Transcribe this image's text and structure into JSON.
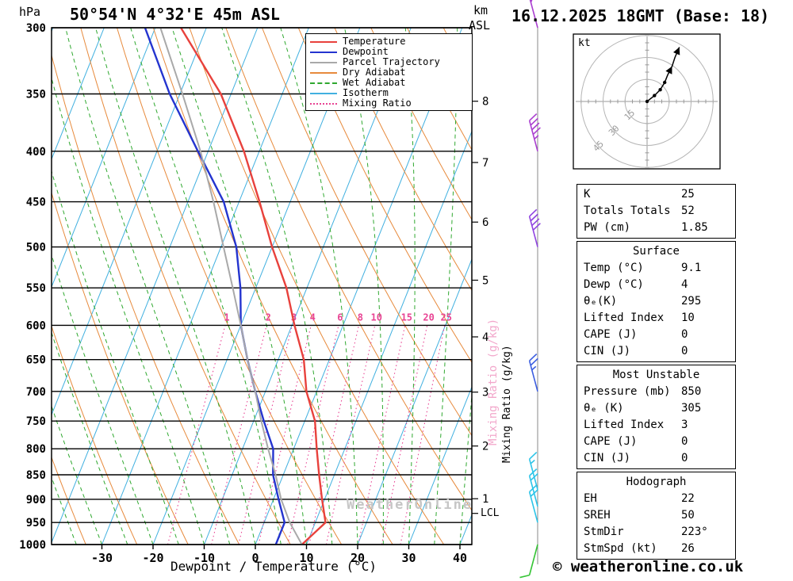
{
  "header": {
    "pressure_unit": "hPa",
    "title": "50°54'N 4°32'E 45m ASL",
    "km_label": "km",
    "asl_label": "ASL",
    "datetime": "16.12.2025 18GMT (Base: 18)"
  },
  "axes": {
    "xlabel": "Dewpoint / Temperature (°C)",
    "temp_ticks": [
      -30,
      -20,
      -10,
      0,
      10,
      20,
      30,
      40
    ],
    "pressure_ticks": [
      300,
      350,
      400,
      450,
      500,
      550,
      600,
      650,
      700,
      750,
      800,
      850,
      900,
      950,
      1000
    ],
    "km_ticks": [
      1,
      2,
      3,
      4,
      5,
      6,
      7,
      8
    ],
    "mixing_ratio_label": "Mixing Ratio (g/kg)",
    "lcl_label": "LCL",
    "lcl_pressure_hPa": 930
  },
  "legend": [
    {
      "label": "Temperature",
      "color": "#e8413c",
      "dash": "solid"
    },
    {
      "label": "Dewpoint",
      "color": "#2434cf",
      "dash": "solid"
    },
    {
      "label": "Parcel Trajectory",
      "color": "#a9a9a9",
      "dash": "solid"
    },
    {
      "label": "Dry Adiabat",
      "color": "#e78a3c",
      "dash": "solid"
    },
    {
      "label": "Wet Adiabat",
      "color": "#2fa82f",
      "dash": "dashed"
    },
    {
      "label": "Isotherm",
      "color": "#41b0e0",
      "dash": "solid"
    },
    {
      "label": "Mixing Ratio",
      "color": "#e84393",
      "dash": "dotted"
    }
  ],
  "chart_data": {
    "type": "line",
    "title": "Skew-T log-P sounding diagram",
    "y_axis": {
      "unit": "hPa",
      "scale": "log",
      "range": [
        1000,
        300
      ]
    },
    "x_axis": {
      "unit": "°C",
      "label": "Dewpoint / Temperature (°C)",
      "range": [
        -40,
        42
      ]
    },
    "levels_hPa": [
      1000,
      950,
      900,
      850,
      800,
      750,
      700,
      650,
      600,
      550,
      500,
      450,
      400,
      350,
      300
    ],
    "series": [
      {
        "name": "Temperature",
        "color": "#e8413c",
        "values_c": [
          9.1,
          12,
          9.5,
          7,
          4.5,
          2,
          -2,
          -5,
          -9.5,
          -14,
          -20,
          -26,
          -33,
          -42,
          -55
        ]
      },
      {
        "name": "Dewpoint",
        "color": "#2434cf",
        "values_c": [
          4,
          4,
          1,
          -2,
          -4,
          -8,
          -12,
          -16,
          -20,
          -23,
          -27,
          -33,
          -42,
          -52,
          -62
        ]
      },
      {
        "name": "Parcel Trajectory",
        "color": "#a9a9a9",
        "values_c": [
          9.1,
          5,
          1.5,
          -1.5,
          -5,
          -8.5,
          -12,
          -16,
          -20,
          -24.5,
          -29.5,
          -35,
          -41.5,
          -49.5,
          -59
        ]
      }
    ],
    "background": {
      "isotherm_step_c": 10,
      "dry_adiabat_step_k": 10,
      "wet_adiabat_step_c": 5,
      "mixing_ratio_lines_gkg": [
        1,
        2,
        3,
        4,
        6,
        8,
        10,
        15,
        20,
        25
      ]
    },
    "wind_barbs": [
      {
        "pressure_hPa": 300,
        "speed_kt": 50,
        "color": "#aa3fd0"
      },
      {
        "pressure_hPa": 400,
        "speed_kt": 45,
        "color": "#aa3fd0"
      },
      {
        "pressure_hPa": 500,
        "speed_kt": 40,
        "color": "#8f43e0"
      },
      {
        "pressure_hPa": 700,
        "speed_kt": 25,
        "color": "#3b5de0"
      },
      {
        "pressure_hPa": 880,
        "speed_kt": 15,
        "color": "#2cc4e8"
      },
      {
        "pressure_hPa": 915,
        "speed_kt": 20,
        "color": "#2cc4e8"
      },
      {
        "pressure_hPa": 950,
        "speed_kt": 20,
        "color": "#2cc4e8"
      },
      {
        "pressure_hPa": 1000,
        "speed_kt": 10,
        "color": "#35c435"
      }
    ],
    "colors": {
      "isotherm": "#41b0e0",
      "dry_adiabat": "#e78a3c",
      "wet_adiabat": "#2fa82f",
      "mixing_ratio": "#e84393",
      "pressure_grid": "#000000"
    }
  },
  "hodograph": {
    "unit_label": "kt",
    "rings_kt": [
      15,
      30,
      45
    ],
    "trace_uv_kt": [
      [
        0,
        0
      ],
      [
        5,
        4
      ],
      [
        9,
        8
      ],
      [
        12,
        13
      ],
      [
        14,
        18
      ],
      [
        17,
        24
      ],
      [
        19,
        30
      ],
      [
        22,
        37
      ]
    ]
  },
  "tables": [
    {
      "rows": [
        [
          "K",
          "25"
        ],
        [
          "Totals Totals",
          "52"
        ],
        [
          "PW (cm)",
          "1.85"
        ]
      ]
    },
    {
      "header": "Surface",
      "rows": [
        [
          "Temp (°C)",
          "9.1"
        ],
        [
          "Dewp (°C)",
          "4"
        ],
        [
          "θₑ(K)",
          "295"
        ],
        [
          "Lifted Index",
          "10"
        ],
        [
          "CAPE (J)",
          "0"
        ],
        [
          "CIN (J)",
          "0"
        ]
      ]
    },
    {
      "header": "Most Unstable",
      "rows": [
        [
          "Pressure (mb)",
          "850"
        ],
        [
          "θₑ (K)",
          "305"
        ],
        [
          "Lifted Index",
          "3"
        ],
        [
          "CAPE (J)",
          "0"
        ],
        [
          "CIN (J)",
          "0"
        ]
      ]
    },
    {
      "header": "Hodograph",
      "rows": [
        [
          "EH",
          "22"
        ],
        [
          "SREH",
          "50"
        ],
        [
          "StmDir",
          "223°"
        ],
        [
          "StmSpd (kt)",
          "26"
        ]
      ]
    }
  ],
  "footer": {
    "copyright": "© weatheronline.co.uk",
    "watermark": "WeatherOnline"
  }
}
